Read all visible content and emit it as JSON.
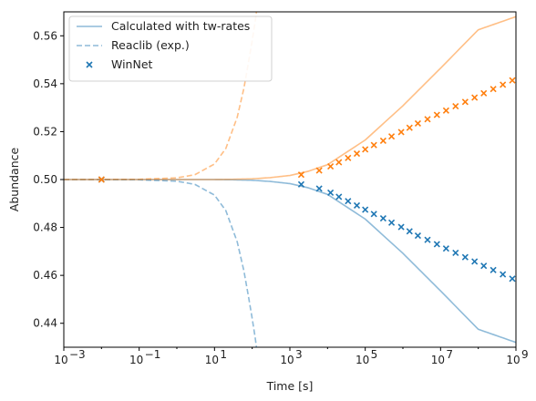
{
  "chart_data": {
    "type": "line",
    "title": "",
    "xlabel": "Time [s]",
    "ylabel": "Abundance",
    "xscale": "log",
    "xlim": [
      0.001,
      1000000000
    ],
    "ylim": [
      0.43,
      0.57
    ],
    "grid": false,
    "legend_position": "top-left",
    "x_tick_exponents": [
      -3,
      -1,
      1,
      3,
      5,
      7,
      9
    ],
    "y_ticks": [
      "0.44",
      "0.46",
      "0.48",
      "0.50",
      "0.52",
      "0.54",
      "0.56"
    ],
    "legend": [
      {
        "label": "Calculated with tw-rates",
        "style": "solid-line"
      },
      {
        "label": "Reaclib (exp.)",
        "style": "dashed-line"
      },
      {
        "label": "WinNet",
        "style": "x-marker"
      }
    ],
    "colors": {
      "blue": "#1f77b4",
      "orange": "#ff7f0e"
    },
    "series": [
      {
        "name": "Calculated with tw-rates",
        "color": "#1f77b4",
        "style": "solid",
        "x": [
          0.001,
          1,
          10,
          30,
          100,
          300,
          1000,
          3000,
          10000,
          100000,
          1000000,
          10000000,
          100000000,
          1000000000
        ],
        "y": [
          0.5,
          0.5,
          0.5,
          0.4999,
          0.4997,
          0.4992,
          0.4983,
          0.4966,
          0.4938,
          0.4835,
          0.4692,
          0.4535,
          0.4375,
          0.432
        ]
      },
      {
        "name": "Calculated with tw-rates",
        "color": "#ff7f0e",
        "style": "solid",
        "x": [
          0.001,
          1,
          10,
          30,
          100,
          300,
          1000,
          3000,
          10000,
          100000,
          1000000,
          10000000,
          100000000,
          1000000000
        ],
        "y": [
          0.5,
          0.5,
          0.5,
          0.5001,
          0.5003,
          0.5008,
          0.5017,
          0.5034,
          0.5062,
          0.5165,
          0.5308,
          0.5465,
          0.5625,
          0.568
        ]
      },
      {
        "name": "Reaclib (exp.)",
        "color": "#1f77b4",
        "style": "dashed",
        "x": [
          0.001,
          0.1,
          1,
          3,
          10,
          20,
          40,
          60,
          80,
          100,
          120,
          140
        ],
        "y": [
          0.5,
          0.4999,
          0.4993,
          0.498,
          0.4935,
          0.487,
          0.474,
          0.462,
          0.451,
          0.442,
          0.434,
          0.426
        ]
      },
      {
        "name": "Reaclib (exp.)",
        "color": "#ff7f0e",
        "style": "dashed",
        "x": [
          0.001,
          0.1,
          1,
          3,
          10,
          20,
          40,
          60,
          80,
          100,
          120,
          140
        ],
        "y": [
          0.5,
          0.5001,
          0.5007,
          0.502,
          0.5065,
          0.513,
          0.526,
          0.538,
          0.549,
          0.558,
          0.566,
          0.574
        ]
      },
      {
        "name": "WinNet",
        "color": "#1f77b4",
        "style": "marker",
        "x": [
          0.01,
          2000,
          6000,
          12000,
          20000,
          35000,
          60000,
          100000,
          170000,
          300000,
          500000,
          900000,
          1500000,
          2500000,
          4500000,
          8000000,
          14000000,
          25000000,
          45000000,
          80000000,
          140000000,
          250000000,
          450000000,
          800000000
        ],
        "y": [
          0.5,
          0.498,
          0.4962,
          0.4945,
          0.4928,
          0.491,
          0.4892,
          0.4874,
          0.4856,
          0.4838,
          0.482,
          0.4802,
          0.4784,
          0.4766,
          0.4748,
          0.473,
          0.4712,
          0.4694,
          0.4676,
          0.4658,
          0.464,
          0.4622,
          0.4604,
          0.4586
        ]
      },
      {
        "name": "WinNet",
        "color": "#ff7f0e",
        "style": "marker",
        "x": [
          0.01,
          2000,
          6000,
          12000,
          20000,
          35000,
          60000,
          100000,
          170000,
          300000,
          500000,
          900000,
          1500000,
          2500000,
          4500000,
          8000000,
          14000000,
          25000000,
          45000000,
          80000000,
          140000000,
          250000000,
          450000000,
          800000000
        ],
        "y": [
          0.5,
          0.502,
          0.5038,
          0.5055,
          0.5072,
          0.509,
          0.5108,
          0.5126,
          0.5144,
          0.5162,
          0.518,
          0.5198,
          0.5216,
          0.5234,
          0.5252,
          0.527,
          0.5288,
          0.5306,
          0.5324,
          0.5342,
          0.536,
          0.5378,
          0.5396,
          0.5414
        ]
      }
    ]
  }
}
